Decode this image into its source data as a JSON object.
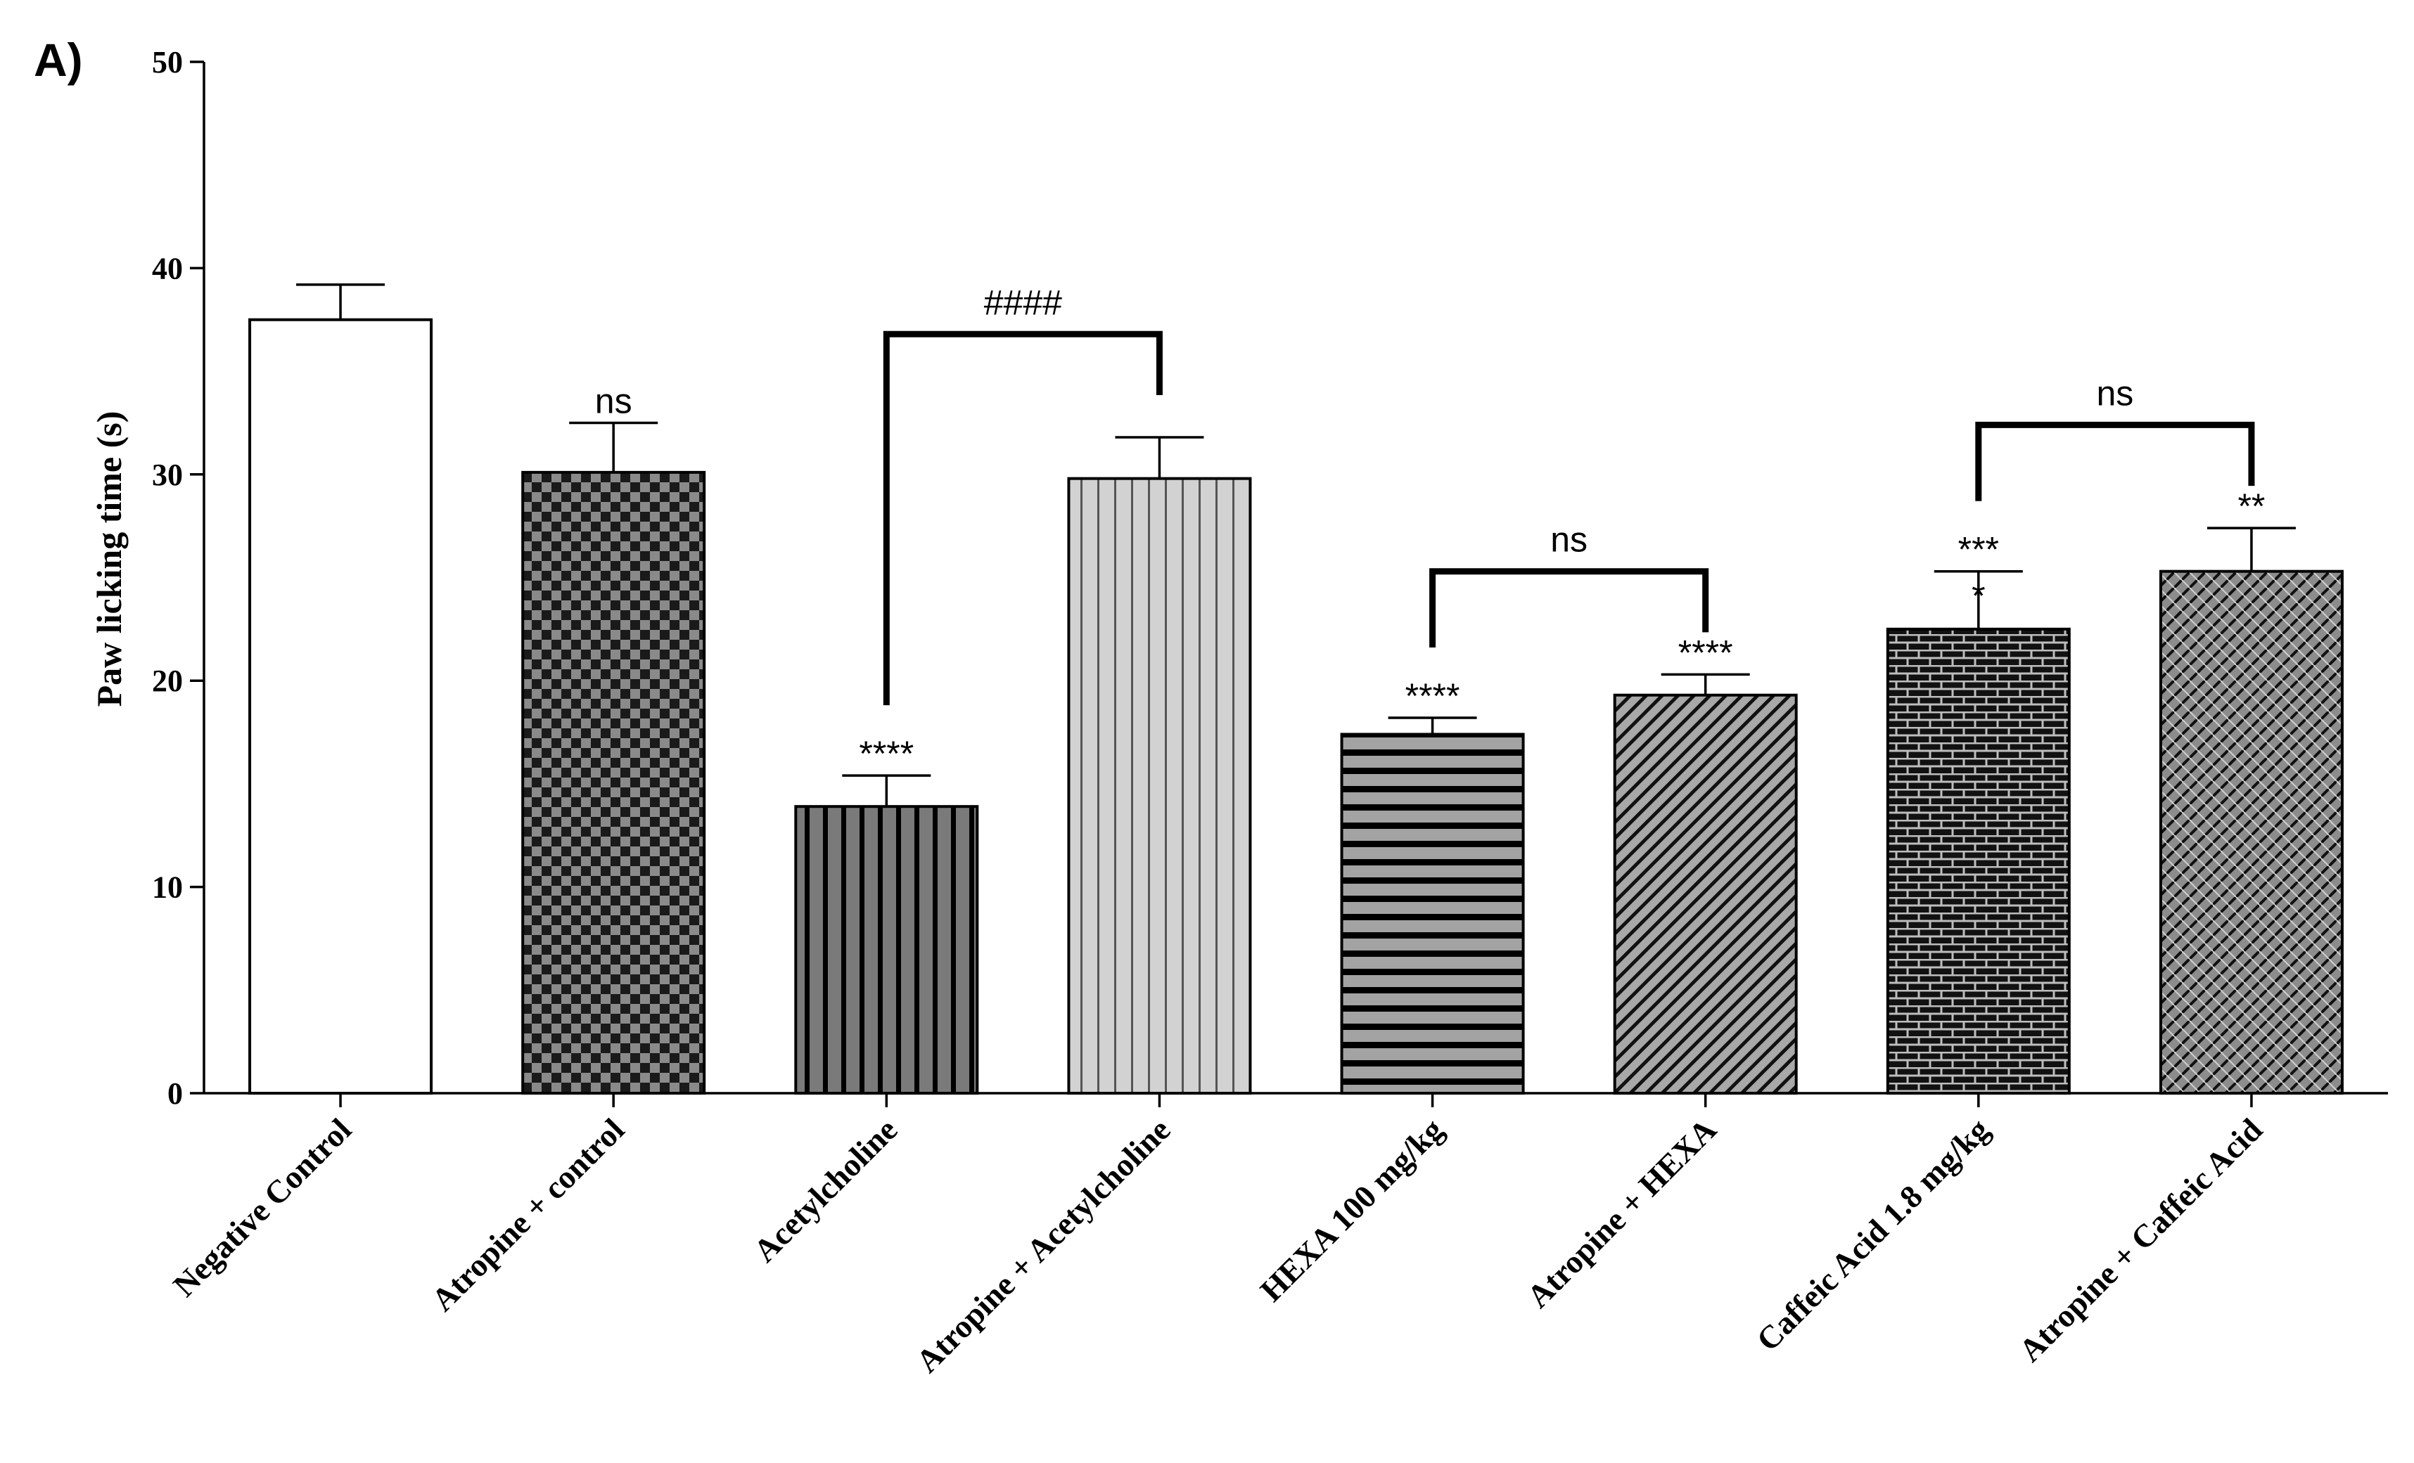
{
  "panel_label": "A)",
  "chart_data": {
    "type": "bar",
    "title": "",
    "xlabel": "",
    "ylabel": "Paw licking time (s)",
    "ylim": [
      0,
      50
    ],
    "yticks": [
      0,
      10,
      20,
      30,
      40,
      50
    ],
    "grid": false,
    "legend": "none",
    "categories": [
      "Negative Control",
      "Atropine + control",
      "Acetylcholine",
      "Atropine + Acetylcholine",
      "HEXA 100 mg/kg",
      "Atropine + HEXA",
      "Caffeic Acid 1.8 mg/kg",
      "Atropine + Caffeic Acid"
    ],
    "values": [
      37.5,
      30.1,
      13.9,
      29.8,
      17.4,
      19.3,
      22.5,
      25.3
    ],
    "errors": [
      1.7,
      2.4,
      1.5,
      2.0,
      0.8,
      1.0,
      2.8,
      2.1
    ],
    "patterns": [
      "none",
      "checker",
      "vstripes-dark",
      "vstripes-light",
      "hstripes",
      "diagonal",
      "brick",
      "weave"
    ],
    "significance": [
      {
        "index": 1,
        "labels": [
          "ns"
        ]
      },
      {
        "index": 2,
        "labels": [
          "****"
        ]
      },
      {
        "index": 4,
        "labels": [
          "****"
        ]
      },
      {
        "index": 5,
        "labels": [
          "****"
        ]
      },
      {
        "index": 6,
        "labels": [
          "***",
          "*"
        ]
      },
      {
        "index": 7,
        "labels": [
          "**"
        ]
      }
    ],
    "comparisons": [
      {
        "from": 2,
        "to": 3,
        "label": "####"
      },
      {
        "from": 4,
        "to": 5,
        "label": "ns"
      },
      {
        "from": 6,
        "to": 7,
        "label": "ns"
      }
    ]
  }
}
